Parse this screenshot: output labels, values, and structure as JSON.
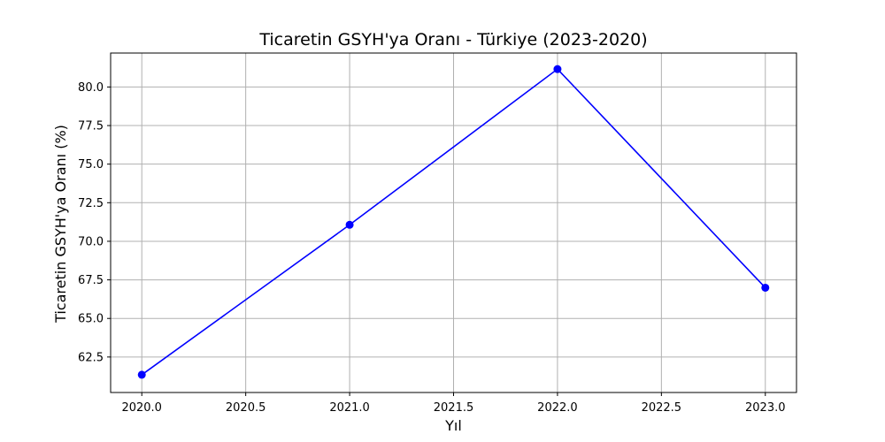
{
  "chart_data": {
    "type": "line",
    "title": "Ticaretin GSYH'ya Oranı - Türkiye (2023-2020)",
    "xlabel": "Yıl",
    "ylabel": "Ticaretin GSYH'ya Oranı (%)",
    "x": [
      2020.0,
      2021.0,
      2022.0,
      2023.0
    ],
    "series": [
      {
        "values": [
          61.35,
          71.07,
          81.16,
          66.99
        ],
        "color": "#0000ff",
        "marker": "circle"
      }
    ],
    "xlim": [
      2019.85,
      2023.15
    ],
    "ylim": [
      60.2,
      82.2
    ],
    "x_ticks": [
      "2020.0",
      "2020.5",
      "2021.0",
      "2021.5",
      "2022.0",
      "2022.5",
      "2023.0"
    ],
    "y_ticks": [
      "62.5",
      "65.0",
      "67.5",
      "70.0",
      "72.5",
      "75.0",
      "77.5",
      "80.0"
    ],
    "grid": true,
    "colors": {
      "line": "#0000ff",
      "grid": "#b0b0b0",
      "axes": "#000000",
      "background": "#ffffff"
    }
  }
}
